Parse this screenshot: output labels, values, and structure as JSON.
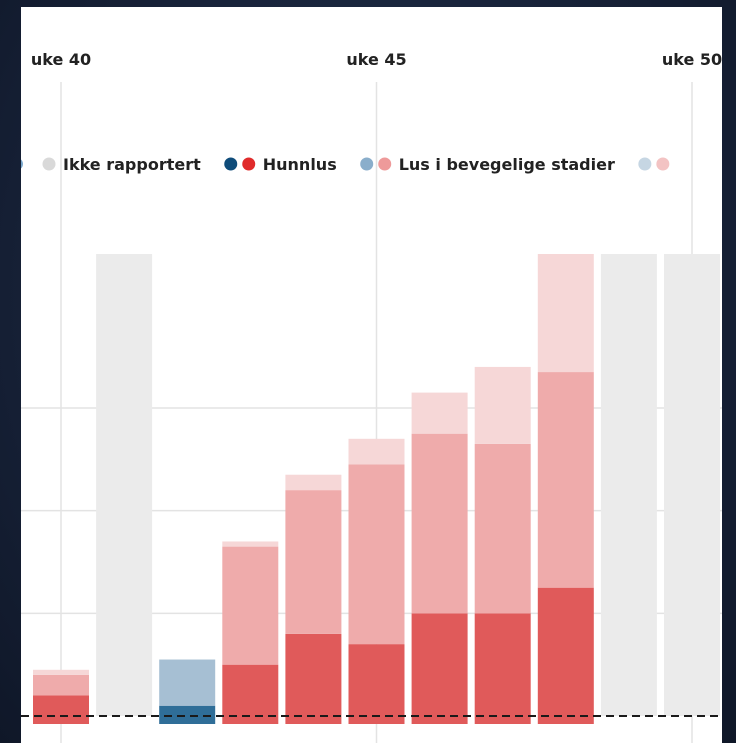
{
  "chart_data": {
    "type": "bar",
    "stacked": true,
    "x_ticks": [
      {
        "label": "uke 40",
        "week": 40
      },
      {
        "label": "uke 45",
        "week": 45
      },
      {
        "label": "uke 50",
        "week": 50
      }
    ],
    "legend": [
      {
        "label": "Ikke rapportert",
        "colors": [
          "#d9d9d9"
        ]
      },
      {
        "label": "Hunnlus",
        "colors": [
          "#0f4c7a",
          "#e02b2b"
        ]
      },
      {
        "label": "Lus i bevegelige stadier",
        "colors": [
          "#8aaecb",
          "#ee9a9a"
        ]
      },
      {
        "label": "",
        "colors": [
          "#c6d6e3",
          "#f3c3c3"
        ]
      }
    ],
    "colors": {
      "not_reported": "#ebebeb",
      "female_red": "#e05a5a",
      "mobile_red": "#efabab",
      "third_red": "#f6d7d7",
      "female_blue": "#2f6e98",
      "mobile_blue": "#a6bfd3",
      "grid": "#e3e3e3",
      "baseline": "#1a1a1a"
    },
    "bars": [
      {
        "week": 40,
        "status": "reported",
        "color": "red",
        "segments": [
          0.2,
          0.2,
          0.05
        ]
      },
      {
        "week": 41,
        "status": "not_reported"
      },
      {
        "week": 42,
        "status": "reported",
        "color": "blue",
        "segments": [
          0.1,
          0.45,
          0
        ]
      },
      {
        "week": 43,
        "status": "reported",
        "color": "red",
        "segments": [
          0.5,
          1.15,
          0.05
        ]
      },
      {
        "week": 44,
        "status": "reported",
        "color": "red",
        "segments": [
          0.8,
          1.4,
          0.15
        ]
      },
      {
        "week": 45,
        "status": "reported",
        "color": "red",
        "segments": [
          0.7,
          1.75,
          0.25
        ]
      },
      {
        "week": 46,
        "status": "reported",
        "color": "red",
        "segments": [
          1.0,
          1.75,
          0.4
        ]
      },
      {
        "week": 47,
        "status": "reported",
        "color": "red",
        "segments": [
          1.0,
          1.65,
          0.75
        ]
      },
      {
        "week": 48,
        "status": "reported",
        "color": "red",
        "segments": [
          1.25,
          2.1,
          1.15
        ]
      },
      {
        "week": 49,
        "status": "not_reported"
      },
      {
        "week": 50,
        "status": "not_reported"
      }
    ],
    "ylim": [
      0,
      4.5
    ],
    "gridlines": [
      1,
      2,
      3
    ],
    "grid": true,
    "legend_position": "top"
  }
}
